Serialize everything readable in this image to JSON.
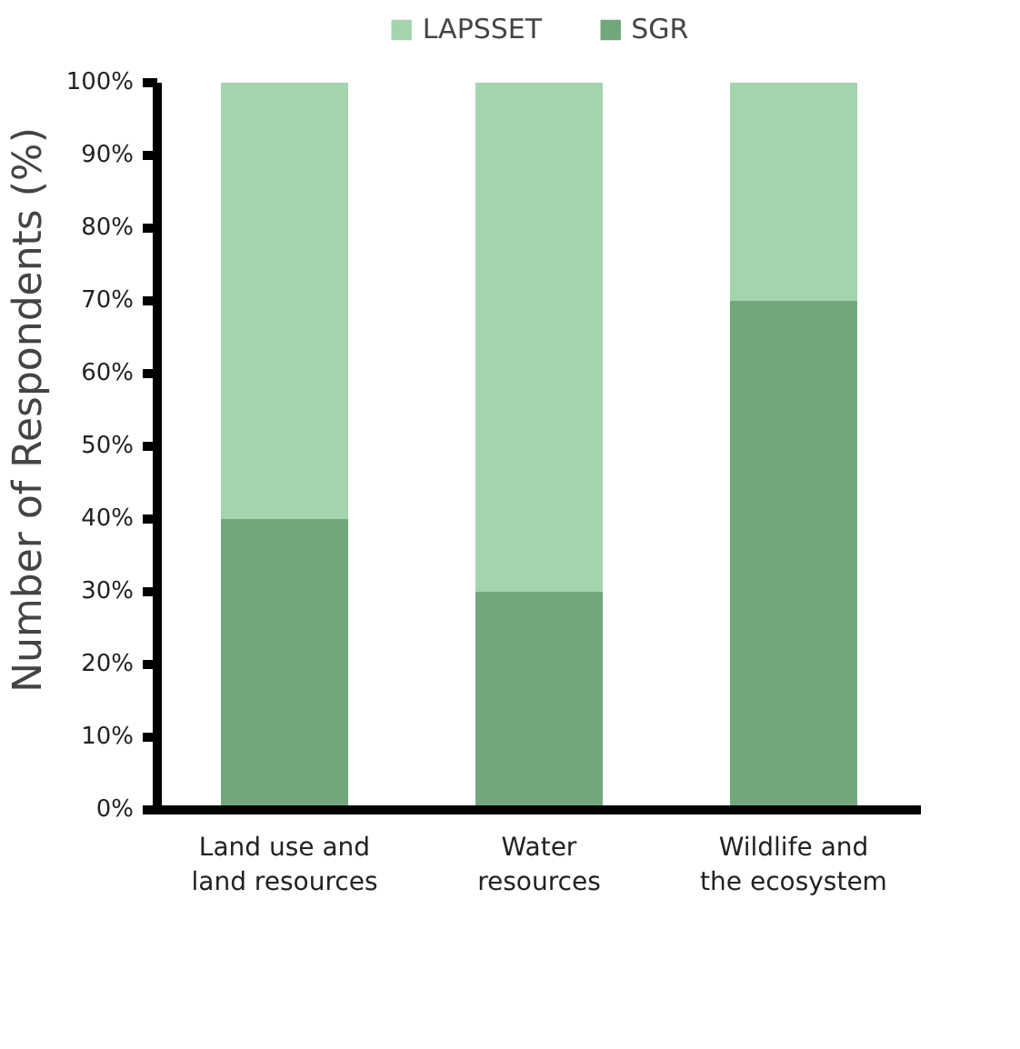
{
  "chart_data": {
    "type": "bar",
    "stacked": true,
    "ylabel": "Number of Respondents (%)",
    "categories": [
      "Land use and land resources",
      "Water resources",
      "Wildlife and the ecosystem"
    ],
    "series": [
      {
        "name": "SGR",
        "color": "#72a77c",
        "values": [
          40,
          30,
          70
        ]
      },
      {
        "name": "LAPSSET",
        "color": "#a3d4ae",
        "values": [
          60,
          70,
          30
        ]
      }
    ],
    "ylim": [
      0,
      100
    ],
    "yticks": [
      {
        "value": 0,
        "label": "0%"
      },
      {
        "value": 10,
        "label": "10%"
      },
      {
        "value": 20,
        "label": "20%"
      },
      {
        "value": 30,
        "label": "30%"
      },
      {
        "value": 40,
        "label": "40%"
      },
      {
        "value": 50,
        "label": "50%"
      },
      {
        "value": 60,
        "label": "60%"
      },
      {
        "value": 70,
        "label": "70%"
      },
      {
        "value": 80,
        "label": "80%"
      },
      {
        "value": 90,
        "label": "90%"
      },
      {
        "value": 100,
        "label": "100%"
      }
    ],
    "legend": "top",
    "grid": false
  }
}
